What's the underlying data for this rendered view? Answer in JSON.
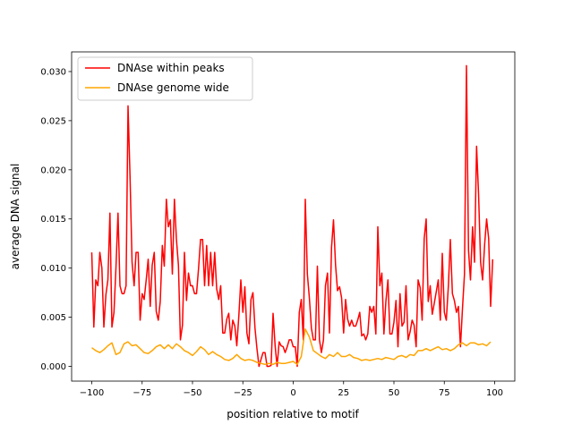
{
  "chart_data": {
    "type": "line",
    "title": "",
    "xlabel": "position relative to motif",
    "ylabel": "average DNA signal",
    "xlim": [
      -110,
      110
    ],
    "ylim": [
      -0.0015,
      0.032
    ],
    "xticks": [
      -100,
      -75,
      -50,
      -25,
      0,
      25,
      50,
      75,
      100
    ],
    "xtick_labels": [
      "−100",
      "−75",
      "−50",
      "−25",
      "0",
      "25",
      "50",
      "75",
      "100"
    ],
    "yticks": [
      0,
      0.005,
      0.01,
      0.015,
      0.02,
      0.025,
      0.03
    ],
    "ytick_labels": [
      "0.000",
      "0.005",
      "0.010",
      "0.015",
      "0.020",
      "0.025",
      "0.030"
    ],
    "grid": false,
    "legend_placement": "top-left",
    "series": [
      {
        "name": "DNAse within peaks",
        "color": "#ff0000",
        "x_start": -100,
        "x_step": 1,
        "values": [
          0.0116,
          0.004,
          0.0088,
          0.0082,
          0.0116,
          0.01,
          0.004,
          0.0073,
          0.0088,
          0.0156,
          0.004,
          0.0055,
          0.01,
          0.0156,
          0.0082,
          0.0074,
          0.0074,
          0.0082,
          0.0265,
          0.0191,
          0.0106,
          0.0082,
          0.0116,
          0.0116,
          0.0047,
          0.0074,
          0.0068,
          0.0088,
          0.0109,
          0.0061,
          0.0103,
          0.0116,
          0.0056,
          0.0047,
          0.0066,
          0.0123,
          0.0102,
          0.017,
          0.0142,
          0.0149,
          0.0094,
          0.017,
          0.013,
          0.0103,
          0.0027,
          0.0042,
          0.0116,
          0.0067,
          0.0095,
          0.0082,
          0.0082,
          0.0074,
          0.0074,
          0.01,
          0.0129,
          0.0129,
          0.0082,
          0.0123,
          0.0082,
          0.0116,
          0.0082,
          0.0116,
          0.0079,
          0.0068,
          0.0082,
          0.0034,
          0.0034,
          0.0048,
          0.0054,
          0.0027,
          0.0047,
          0.0041,
          0.0021,
          0.0052,
          0.0088,
          0.0055,
          0.0081,
          0.0034,
          0.0023,
          0.0068,
          0.0075,
          0.0039,
          0.0018,
          0.0,
          0.0007,
          0.0014,
          0.0014,
          0.0,
          0.0,
          0.0001,
          0.0054,
          0.0021,
          0.0,
          0.0025,
          0.0021,
          0.002,
          0.0014,
          0.002,
          0.0027,
          0.0027,
          0.002,
          0.002,
          0.0,
          0.0055,
          0.0068,
          0.0027,
          0.017,
          0.0094,
          0.007,
          0.0039,
          0.0027,
          0.0027,
          0.0102,
          0.0027,
          0.0014,
          0.0027,
          0.0082,
          0.0095,
          0.0034,
          0.0121,
          0.0149,
          0.0103,
          0.0077,
          0.0081,
          0.007,
          0.0034,
          0.0068,
          0.0048,
          0.0041,
          0.0047,
          0.0041,
          0.0041,
          0.0047,
          0.0055,
          0.0031,
          0.0033,
          0.0027,
          0.0033,
          0.0061,
          0.0055,
          0.0061,
          0.0033,
          0.0142,
          0.0082,
          0.0095,
          0.0033,
          0.0066,
          0.0088,
          0.0033,
          0.0033,
          0.0045,
          0.0067,
          0.002,
          0.0074,
          0.0041,
          0.0045,
          0.0082,
          0.0027,
          0.0035,
          0.0047,
          0.0042,
          0.002,
          0.0088,
          0.008,
          0.0047,
          0.013,
          0.015,
          0.0066,
          0.0082,
          0.0053,
          0.0064,
          0.0076,
          0.0088,
          0.0047,
          0.0115,
          0.0055,
          0.0047,
          0.0082,
          0.0129,
          0.0074,
          0.0067,
          0.0055,
          0.0061,
          0.002,
          0.0058,
          0.0094,
          0.0306,
          0.0118,
          0.0088,
          0.0142,
          0.0106,
          0.0224,
          0.0176,
          0.0106,
          0.0088,
          0.0124,
          0.015,
          0.013,
          0.0061,
          0.0109
        ]
      },
      {
        "name": "DNAse genome wide",
        "color": "#ffa500",
        "x_start": -100,
        "x_step": 2,
        "values": [
          0.0019,
          0.0016,
          0.0014,
          0.0017,
          0.0021,
          0.0024,
          0.0012,
          0.0014,
          0.0023,
          0.0025,
          0.0021,
          0.0022,
          0.0018,
          0.0014,
          0.0013,
          0.0016,
          0.002,
          0.0022,
          0.0018,
          0.0022,
          0.0018,
          0.0023,
          0.002,
          0.0016,
          0.0014,
          0.0011,
          0.0015,
          0.002,
          0.0017,
          0.0012,
          0.0015,
          0.0012,
          0.001,
          0.0007,
          0.0006,
          0.0008,
          0.0012,
          0.0008,
          0.0006,
          0.0007,
          0.0006,
          0.0004,
          0.0003,
          0.0002,
          0.0003,
          0.0002,
          0.0004,
          0.0003,
          0.0003,
          0.0004,
          0.0005,
          0.0002,
          0.001,
          0.0038,
          0.003,
          0.0016,
          0.0013,
          0.001,
          0.0008,
          0.0012,
          0.001,
          0.0014,
          0.001,
          0.001,
          0.0012,
          0.0009,
          0.0008,
          0.0006,
          0.0007,
          0.0006,
          0.0007,
          0.0008,
          0.0007,
          0.0009,
          0.0008,
          0.0007,
          0.001,
          0.0011,
          0.0009,
          0.0012,
          0.0011,
          0.0016,
          0.0016,
          0.0018,
          0.0016,
          0.0018,
          0.002,
          0.0017,
          0.0018,
          0.0016,
          0.0018,
          0.0022,
          0.0024,
          0.0021,
          0.0024,
          0.0024,
          0.0022,
          0.0023,
          0.0021,
          0.0025
        ]
      }
    ]
  }
}
